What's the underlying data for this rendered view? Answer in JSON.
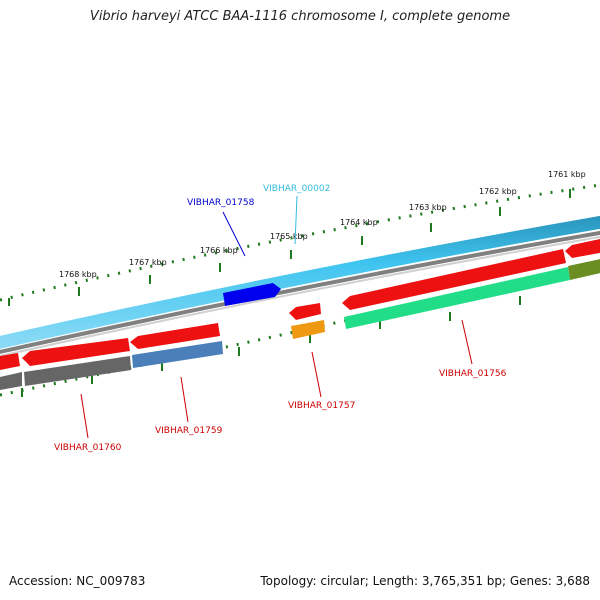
{
  "title": "Vibrio harveyi ATCC BAA-1116 chromosome I, complete genome",
  "accession": "Accession: NC_009783",
  "summary": "Topology: circular; Length: 3,765,351 bp; Genes: 3,688",
  "colors": {
    "strand_light": "#3ec4ef",
    "strand_dark": "#2a93ba",
    "backbone": "#808080",
    "tick": "#1f7a1f",
    "gene_red": "#ee1111",
    "gene_gray": "#666666",
    "gene_steelblue": "#4a7fba",
    "gene_green": "#22dd88",
    "gene_olive": "#6b8e23",
    "gene_orange": "#ee9911",
    "gene_blue": "#0000ee",
    "label_red": "#cc0000",
    "label_blue": "#0000cc",
    "label_cyan": "#33bbdd"
  },
  "scale_labels": [
    "1768 kbp",
    "1767 kbp",
    "1766 kbp",
    "1765 kbp",
    "1764 kbp",
    "1763 kbp",
    "1762 kbp",
    "1761 kbp"
  ],
  "gene_labels": [
    {
      "id": "VIBHAR_01758",
      "color": "label_blue"
    },
    {
      "id": "VIBHAR_00002",
      "color": "label_cyan"
    },
    {
      "id": "VIBHAR_01756",
      "color": "label_red"
    },
    {
      "id": "VIBHAR_01757",
      "color": "label_red"
    },
    {
      "id": "VIBHAR_01759",
      "color": "label_red"
    },
    {
      "id": "VIBHAR_01760",
      "color": "label_red"
    }
  ]
}
